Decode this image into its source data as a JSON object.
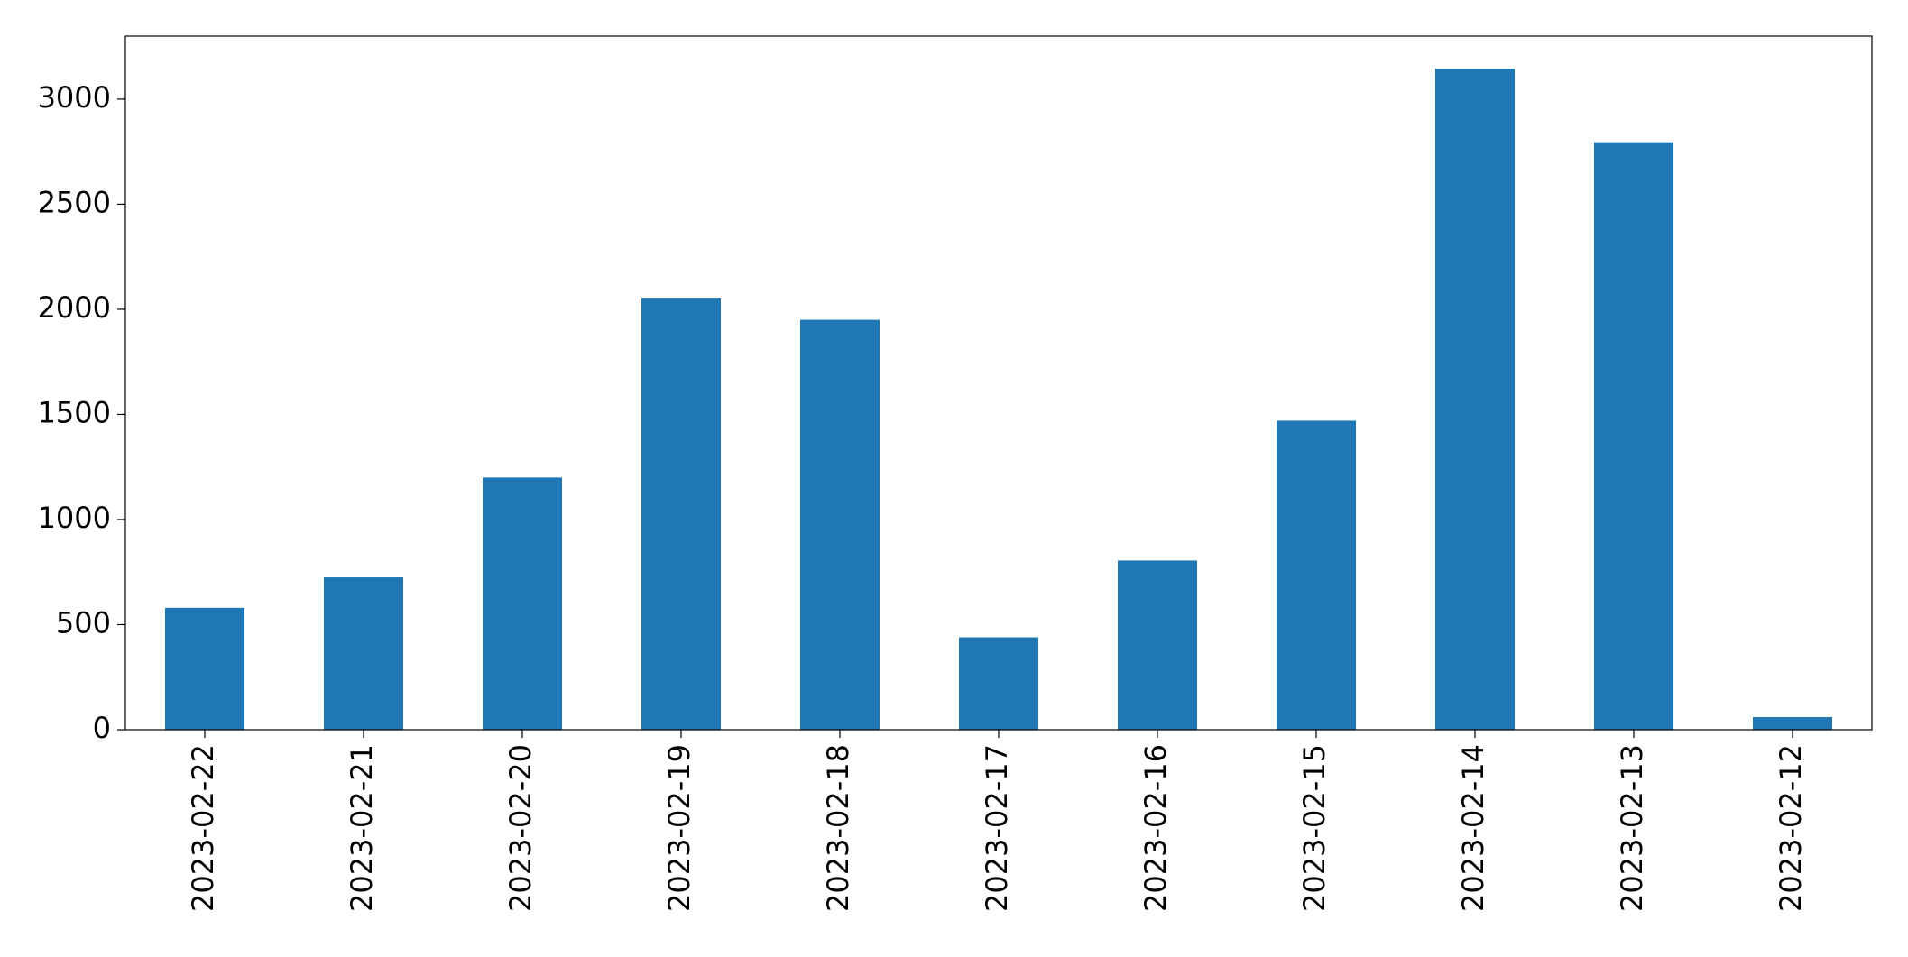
{
  "chart_data": {
    "type": "bar",
    "categories": [
      "2023-02-22",
      "2023-02-21",
      "2023-02-20",
      "2023-02-19",
      "2023-02-18",
      "2023-02-17",
      "2023-02-16",
      "2023-02-15",
      "2023-02-14",
      "2023-02-13",
      "2023-02-12"
    ],
    "values": [
      580,
      725,
      1200,
      2055,
      1950,
      440,
      805,
      1470,
      3145,
      2795,
      60
    ],
    "color": "#1f77b4",
    "ylim": [
      0,
      3300
    ],
    "yticks": [
      0,
      500,
      1000,
      1500,
      2000,
      2500,
      3000
    ],
    "grid": false
  }
}
